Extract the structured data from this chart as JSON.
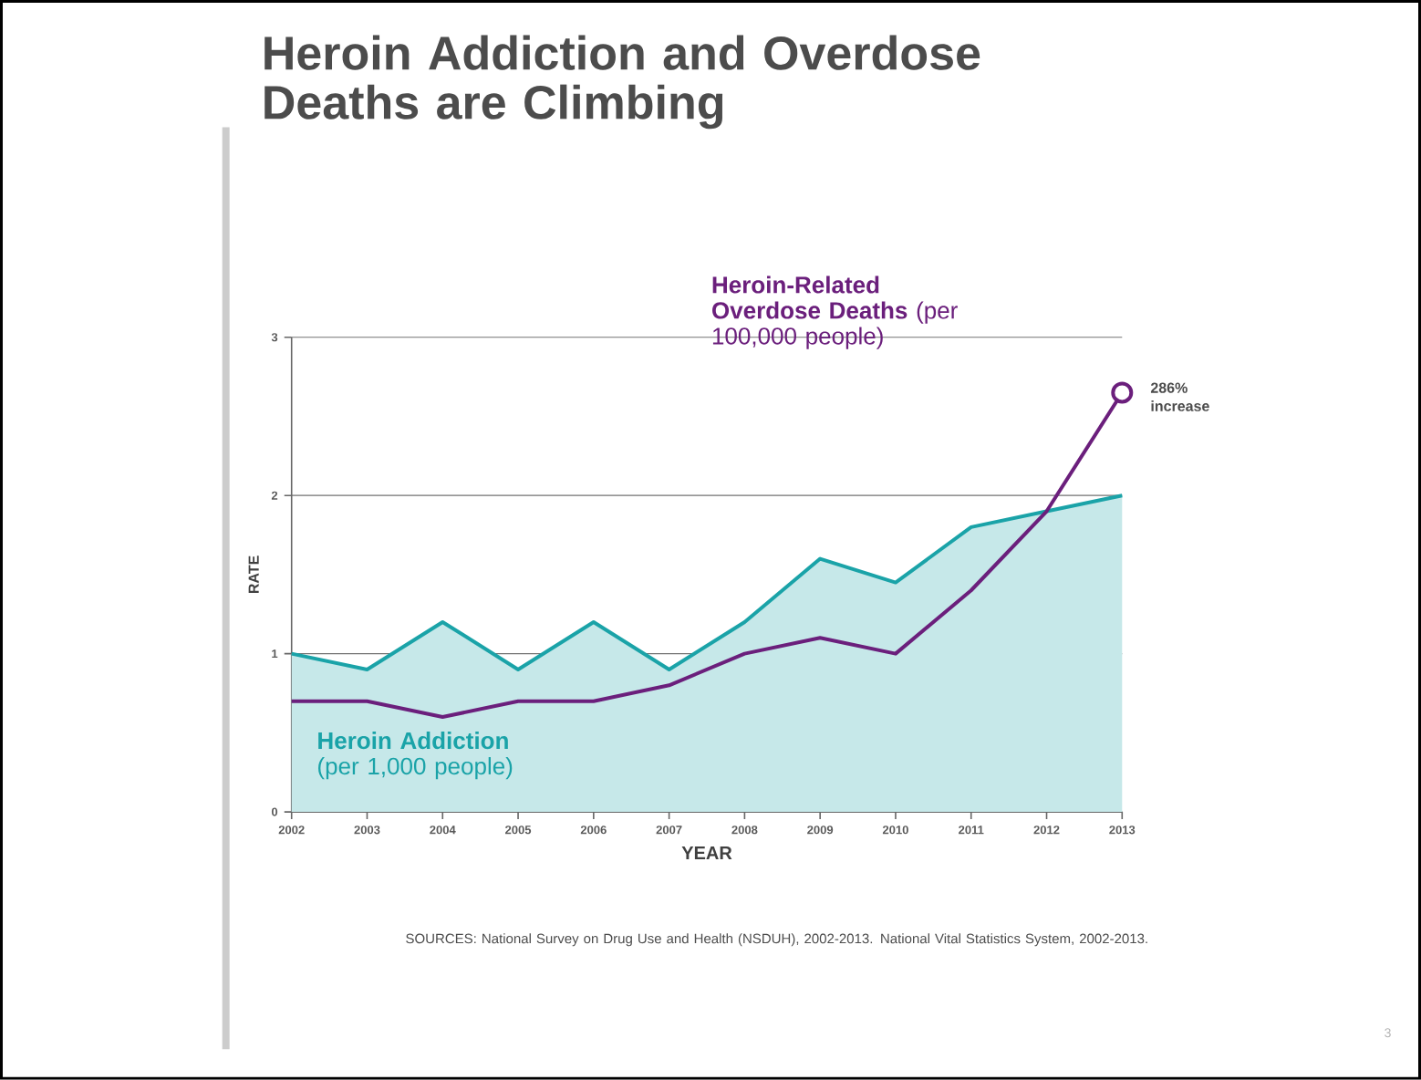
{
  "chart_data": {
    "type": "line",
    "title": "Heroin Addiction and Overdose Deaths are Climbing",
    "xlabel": "YEAR",
    "ylabel": "RATE",
    "x": [
      2002,
      2003,
      2004,
      2005,
      2006,
      2007,
      2008,
      2009,
      2010,
      2011,
      2012,
      2013
    ],
    "series": [
      {
        "name": "**Heroin Addiction** (per 1,000 people)",
        "type": "area",
        "color": "#1aa3a8",
        "values": [
          1.0,
          0.9,
          1.2,
          0.9,
          1.2,
          0.9,
          1.2,
          1.6,
          1.45,
          1.8,
          1.9,
          2.0
        ]
      },
      {
        "name": "**Heroin-Related Overdose Deaths** (per 100,000 people)",
        "color": "#6b1f7c",
        "values": [
          0.7,
          0.7,
          0.6,
          0.7,
          0.7,
          0.8,
          1.0,
          1.1,
          1.0,
          1.4,
          1.9,
          2.65
        ]
      }
    ],
    "xlim": [
      2002,
      2013
    ],
    "xticks": [
      2002,
      2003,
      2004,
      2005,
      2006,
      2007,
      2008,
      2009,
      2010,
      2011,
      2012,
      2013
    ],
    "ylim": [
      0,
      3
    ],
    "yticks": [
      0,
      1,
      2,
      3
    ],
    "grid": "y",
    "annotations": [
      {
        "text": "**286%** increase",
        "x": 2013,
        "y": 2.65
      },
      "SOURCES: National Survey on Drug Use and Health (NSDUH), 2002-2013. National Vital Statistics System, 2002-2013.",
      "3"
    ]
  }
}
